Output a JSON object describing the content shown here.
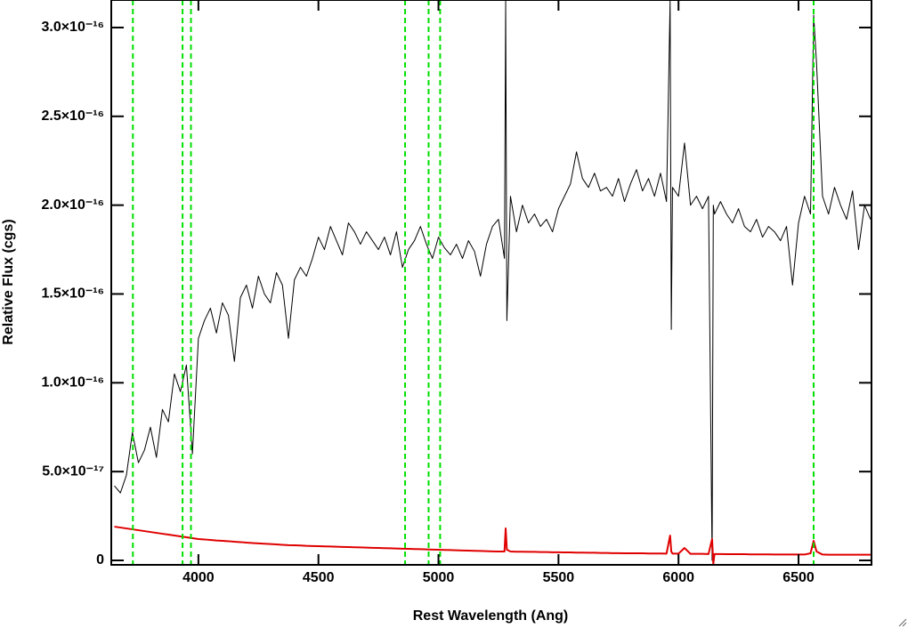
{
  "chart_data": {
    "type": "line",
    "xlabel": "Rest Wavelength (Ang)",
    "ylabel": "Relative Flux (cgs)",
    "xlim": [
      3637,
      6804
    ],
    "ylim": [
      -2.5e-18,
      3.155e-16
    ],
    "xticks": [
      4000,
      4500,
      5000,
      5500,
      6000,
      6500
    ],
    "yticks": [
      0,
      {
        "value": 5e-17,
        "label": "5.0×10⁻¹⁷"
      },
      {
        "value": 1e-16,
        "label": "1.0×10⁻¹⁶"
      },
      {
        "value": 1.5e-16,
        "label": "1.5×10⁻¹⁶"
      },
      {
        "value": 2e-16,
        "label": "2.0×10⁻¹⁶"
      },
      {
        "value": 2.5e-16,
        "label": "2.5×10⁻¹⁶"
      },
      {
        "value": 3e-16,
        "label": "3.0×10⁻¹⁶"
      }
    ],
    "vlines": {
      "color": "#00e000",
      "values": [
        3727,
        3934,
        3969,
        4861,
        4959,
        5007,
        6563
      ]
    },
    "x": [
      3650,
      3675,
      3700,
      3725,
      3750,
      3775,
      3800,
      3825,
      3850,
      3875,
      3900,
      3925,
      3950,
      3975,
      4000,
      4025,
      4050,
      4075,
      4100,
      4125,
      4150,
      4175,
      4200,
      4225,
      4250,
      4275,
      4300,
      4325,
      4350,
      4375,
      4400,
      4425,
      4450,
      4475,
      4500,
      4525,
      4550,
      4575,
      4600,
      4625,
      4650,
      4675,
      4700,
      4725,
      4750,
      4775,
      4800,
      4825,
      4850,
      4875,
      4900,
      4925,
      4950,
      4975,
      5000,
      5025,
      5050,
      5075,
      5100,
      5125,
      5150,
      5175,
      5200,
      5225,
      5250,
      5275,
      5280,
      5285,
      5300,
      5325,
      5350,
      5375,
      5400,
      5425,
      5450,
      5475,
      5500,
      5525,
      5550,
      5575,
      5600,
      5625,
      5650,
      5675,
      5700,
      5725,
      5750,
      5775,
      5800,
      5825,
      5850,
      5875,
      5900,
      5925,
      5950,
      5965,
      5970,
      5975,
      6000,
      6025,
      6050,
      6075,
      6100,
      6125,
      6140,
      6145,
      6150,
      6175,
      6200,
      6225,
      6250,
      6275,
      6300,
      6325,
      6350,
      6375,
      6400,
      6425,
      6450,
      6475,
      6500,
      6525,
      6550,
      6563,
      6575,
      6600,
      6625,
      6650,
      6675,
      6700,
      6725,
      6750,
      6775,
      6800
    ],
    "series": [
      {
        "color": "#000000",
        "values": [
          4.2e-17,
          3.8e-17,
          4.8e-17,
          7.2e-17,
          5.5e-17,
          6.2e-17,
          7.5e-17,
          5.8e-17,
          8.5e-17,
          7.8e-17,
          1.05e-16,
          9.5e-17,
          1.1e-16,
          6e-17,
          1.25e-16,
          1.35e-16,
          1.42e-16,
          1.28e-16,
          1.45e-16,
          1.38e-16,
          1.12e-16,
          1.48e-16,
          1.55e-16,
          1.42e-16,
          1.6e-16,
          1.5e-16,
          1.45e-16,
          1.62e-16,
          1.55e-16,
          1.25e-16,
          1.58e-16,
          1.65e-16,
          1.6e-16,
          1.7e-16,
          1.82e-16,
          1.75e-16,
          1.88e-16,
          1.8e-16,
          1.72e-16,
          1.9e-16,
          1.85e-16,
          1.78e-16,
          1.85e-16,
          1.8e-16,
          1.75e-16,
          1.82e-16,
          1.72e-16,
          1.85e-16,
          1.65e-16,
          1.75e-16,
          1.8e-16,
          1.88e-16,
          1.78e-16,
          1.7e-16,
          1.82e-16,
          1.76e-16,
          1.72e-16,
          1.78e-16,
          1.7e-16,
          1.8e-16,
          1.74e-16,
          1.6e-16,
          1.78e-16,
          1.88e-16,
          1.92e-16,
          1.7e-16,
          3.15e-16,
          1.35e-16,
          2.05e-16,
          1.85e-16,
          2e-16,
          1.9e-16,
          1.95e-16,
          1.88e-16,
          1.92e-16,
          1.85e-16,
          1.98e-16,
          2.05e-16,
          2.12e-16,
          2.3e-16,
          2.15e-16,
          2.1e-16,
          2.18e-16,
          2.08e-16,
          2.1e-16,
          2.05e-16,
          2.15e-16,
          2.02e-16,
          2.12e-16,
          2.2e-16,
          2.08e-16,
          2.15e-16,
          2.05e-16,
          2.18e-16,
          2.02e-16,
          3.15e-16,
          1.3e-16,
          2.1e-16,
          2.05e-16,
          2.35e-16,
          2e-16,
          2.05e-16,
          1.98e-16,
          2.05e-16,
          0,
          2e-16,
          1.95e-16,
          2.02e-16,
          1.95e-16,
          1.9e-16,
          1.98e-16,
          1.88e-16,
          1.85e-16,
          1.92e-16,
          1.82e-16,
          1.88e-16,
          1.85e-16,
          1.8e-16,
          1.88e-16,
          1.55e-16,
          1.9e-16,
          2.05e-16,
          1.95e-16,
          3.07e-16,
          2.8e-16,
          2.05e-16,
          1.95e-16,
          2.1e-16,
          2e-16,
          1.92e-16,
          2.08e-16,
          1.75e-16,
          2e-16,
          1.92e-16
        ]
      },
      {
        "color": "#e00000",
        "values": [
          1.9e-17,
          1.85e-17,
          1.8e-17,
          1.75e-17,
          1.7e-17,
          1.65e-17,
          1.6e-17,
          1.55e-17,
          1.5e-17,
          1.45e-17,
          1.4e-17,
          1.35e-17,
          1.3e-17,
          1.25e-17,
          1.2e-17,
          1.18e-17,
          1.15e-17,
          1.12e-17,
          1.1e-17,
          1.08e-17,
          1.05e-17,
          1.03e-17,
          1e-17,
          9.8e-18,
          9.6e-18,
          9.4e-18,
          9.2e-18,
          9e-18,
          8.8e-18,
          8.6e-18,
          8.5e-18,
          8.4e-18,
          8.2e-18,
          8.1e-18,
          8e-18,
          7.9e-18,
          7.8e-18,
          7.7e-18,
          7.6e-18,
          7.5e-18,
          7.4e-18,
          7.3e-18,
          7.2e-18,
          7.1e-18,
          7e-18,
          6.9e-18,
          6.8e-18,
          6.7e-18,
          6.6e-18,
          6.5e-18,
          6.4e-18,
          6.3e-18,
          6.2e-18,
          6.1e-18,
          6e-18,
          5.9e-18,
          5.8e-18,
          5.7e-18,
          5.6e-18,
          5.5e-18,
          5.4e-18,
          5.3e-18,
          5.2e-18,
          5.1e-18,
          5e-18,
          5e-18,
          1.8e-17,
          6e-18,
          5e-18,
          4.9e-18,
          4.9e-18,
          4.8e-18,
          4.8e-18,
          4.7e-18,
          4.7e-18,
          4.6e-18,
          4.6e-18,
          4.5e-18,
          4.5e-18,
          4.4e-18,
          4.4e-18,
          4.3e-18,
          4.3e-18,
          4.2e-18,
          4.2e-18,
          4.1e-18,
          4.1e-18,
          4e-18,
          4e-18,
          4e-18,
          4e-18,
          3.9e-18,
          3.9e-18,
          3.9e-18,
          3.8e-18,
          1.4e-17,
          5e-18,
          3.8e-18,
          3.8e-18,
          7e-18,
          3.7e-18,
          3.7e-18,
          3.7e-18,
          3.6e-18,
          1.2e-17,
          -2e-18,
          3.6e-18,
          3.6e-18,
          3.5e-18,
          3.5e-18,
          3.5e-18,
          3.5e-18,
          3.4e-18,
          3.4e-18,
          3.4e-18,
          3.4e-18,
          3.3e-18,
          3.3e-18,
          3.3e-18,
          3.3e-18,
          3.3e-18,
          3.3e-18,
          4e-18,
          1.1e-17,
          5e-18,
          3.3e-18,
          3.2e-18,
          3.2e-18,
          3.2e-18,
          3.2e-18,
          3.2e-18,
          3.2e-18,
          3.2e-18,
          3.2e-18
        ]
      }
    ]
  }
}
